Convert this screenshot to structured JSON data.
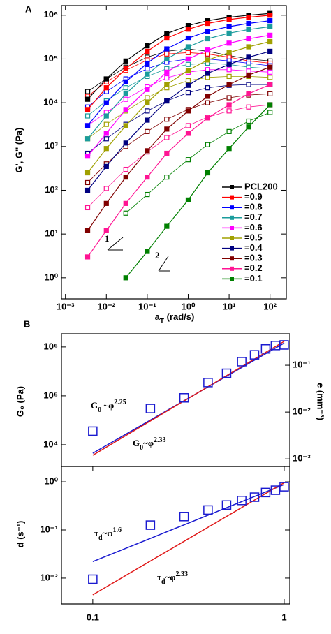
{
  "chart_data": [
    {
      "type": "line",
      "panel_label": "A",
      "x_label": {
        "main": "a",
        "sub": "T",
        "rest": "   (rad/s)"
      },
      "y_label": "G', G'' (Pa)",
      "log_x": true,
      "log_y": true,
      "xlim": [
        0.0008,
        250
      ],
      "ylim": [
        0.33,
        1660000
      ],
      "xticks": [
        {
          "value": 0.001,
          "label": "10⁻³"
        },
        {
          "value": 0.01,
          "label": "10⁻²"
        },
        {
          "value": 0.1,
          "label": "10⁻¹"
        },
        {
          "value": 1,
          "label": "10⁰"
        },
        {
          "value": 10,
          "label": "10¹"
        },
        {
          "value": 100,
          "label": "10²"
        }
      ],
      "yticks": [
        {
          "value": 1,
          "label": "10⁰"
        },
        {
          "value": 10,
          "label": "10¹"
        },
        {
          "value": 100,
          "label": "10²"
        },
        {
          "value": 1000,
          "label": "10³"
        },
        {
          "value": 10000,
          "label": "10⁴"
        },
        {
          "value": 100000,
          "label": "10⁵"
        },
        {
          "value": 1000000,
          "label": "10⁶"
        }
      ],
      "x": [
        0.0035,
        0.01,
        0.03,
        0.1,
        0.3,
        1,
        3,
        10,
        30,
        100
      ],
      "legend": "lower right",
      "slopes": [
        "1",
        "2"
      ],
      "series": [
        {
          "name": "PCL200",
          "color": "#000000",
          "values": [
            12000,
            35000,
            90000,
            200000,
            380000,
            580000,
            750000,
            900000,
            1000000,
            1100000
          ],
          "loss_values": [
            18000,
            35000,
            65000,
            110000,
            150000,
            170000,
            150000,
            120000,
            100000,
            90000
          ]
        },
        {
          "name": "=0.9",
          "color": "#ff0000",
          "values": [
            7000,
            22000,
            60000,
            150000,
            300000,
            480000,
            650000,
            800000,
            900000,
            1000000
          ],
          "loss_values": [
            14000,
            30000,
            55000,
            95000,
            130000,
            140000,
            130000,
            110000,
            90000,
            80000
          ]
        },
        {
          "name": "=0.8",
          "color": "#0000ff",
          "values": [
            3000,
            10000,
            30000,
            80000,
            170000,
            300000,
            430000,
            550000,
            650000,
            750000
          ],
          "loss_values": [
            8000,
            18000,
            35000,
            60000,
            85000,
            100000,
            100000,
            90000,
            80000,
            70000
          ]
        },
        {
          "name": "=0.7",
          "color": "#1a9c9c",
          "values": [
            1500,
            5000,
            16000,
            45000,
            100000,
            190000,
            290000,
            390000,
            470000,
            550000
          ],
          "loss_values": [
            5000,
            11000,
            22000,
            40000,
            60000,
            75000,
            80000,
            75000,
            65000,
            60000
          ]
        },
        {
          "name": "=0.6",
          "color": "#ff00ff",
          "values": [
            600,
            2000,
            7000,
            20000,
            50000,
            100000,
            160000,
            230000,
            290000,
            350000
          ],
          "loss_values": [
            3000,
            6000,
            12000,
            23000,
            37000,
            50000,
            57000,
            57000,
            53000,
            50000
          ]
        },
        {
          "name": "=0.5",
          "color": "#a0a000",
          "values": [
            250,
            900,
            3000,
            10000,
            26000,
            55000,
            95000,
            140000,
            190000,
            250000
          ],
          "loss_values": [
            1500,
            3200,
            6500,
            13000,
            22000,
            32000,
            38000,
            40000,
            40000,
            38000
          ]
        },
        {
          "name": "=0.4",
          "color": "#000080",
          "values": [
            100,
            350,
            1200,
            4000,
            11000,
            25000,
            47000,
            75000,
            110000,
            150000
          ],
          "loss_values": [
            700,
            1500,
            3200,
            6500,
            11000,
            17000,
            22000,
            25000,
            26000,
            26000
          ]
        },
        {
          "name": "=0.3",
          "color": "#800000",
          "values": [
            12,
            50,
            200,
            800,
            2500,
            6500,
            14000,
            26000,
            43000,
            65000
          ],
          "loss_values": [
            150,
            400,
            1000,
            2200,
            4200,
            7000,
            10000,
            13000,
            15000,
            16000
          ]
        },
        {
          "name": "=0.2",
          "color": "#ff1493",
          "values": [
            3,
            12,
            50,
            200,
            700,
            2000,
            4500,
            9000,
            16000,
            26000
          ],
          "loss_values": [
            40,
            110,
            300,
            750,
            1600,
            3000,
            4700,
            6500,
            8000,
            9000
          ]
        },
        {
          "name": "=0.1",
          "color": "#008000",
          "values": [
            null,
            null,
            1,
            4,
            15,
            60,
            250,
            900,
            2800,
            9000
          ],
          "loss_values": [
            null,
            null,
            30,
            80,
            200,
            500,
            1100,
            2200,
            3800,
            6000
          ]
        }
      ]
    },
    {
      "type": "scatter",
      "panel_label": "B",
      "y_label": "G₀ (Pa)",
      "y2_label": "e (mm⁻³)",
      "log_x": true,
      "log_y": true,
      "xlim": [
        0.0686,
        1.07
      ],
      "ylim": [
        3600,
        1860000
      ],
      "y2lim": [
        0.00069,
        0.47
      ],
      "yticks": [
        {
          "value": 10000,
          "label": "10⁴"
        },
        {
          "value": 100000,
          "label": "10⁵"
        },
        {
          "value": 1000000,
          "label": "10⁶"
        }
      ],
      "y2ticks": [
        {
          "value": 0.001,
          "label": "10⁻³"
        },
        {
          "value": 0.01,
          "label": "10⁻²"
        },
        {
          "value": 0.1,
          "label": "10⁻¹"
        }
      ],
      "x": [
        0.1,
        0.2,
        0.3,
        0.4,
        0.5,
        0.6,
        0.7,
        0.8,
        0.9,
        1
      ],
      "values": [
        19000,
        55000,
        91000,
        187000,
        290000,
        500000,
        690000,
        910000,
        1070000,
        1100000
      ],
      "color": "#1a1ad0",
      "fits": [
        {
          "x": [
            0.1,
            1
          ],
          "values": [
            6700,
            1200000
          ],
          "color": "#1a1ad0",
          "label": {
            "base": "G",
            "sub": "0",
            "rel": " ~φ",
            "sup": "2.25"
          }
        },
        {
          "x": [
            0.1,
            1
          ],
          "values": [
            6100,
            1300000
          ],
          "color": "#e01818",
          "label": {
            "base": "G",
            "sub": "0",
            "rel": "~φ",
            "sup": "2.33"
          }
        }
      ]
    },
    {
      "type": "scatter",
      "y_label": "d (s⁻¹)",
      "log_x": true,
      "log_y": true,
      "xlim": [
        0.0686,
        1.07
      ],
      "ylim": [
        0.0029,
        2.09
      ],
      "xticks": [
        0.1,
        1
      ],
      "yticks": [
        {
          "value": 0.01,
          "label": "10⁻²"
        },
        {
          "value": 0.1,
          "label": "10⁻¹"
        },
        {
          "value": 1,
          "label": "10⁰"
        }
      ],
      "x": [
        0.1,
        0.2,
        0.3,
        0.4,
        0.5,
        0.6,
        0.7,
        0.8,
        0.9,
        1
      ],
      "values": [
        0.0095,
        0.126,
        0.19,
        0.26,
        0.33,
        0.41,
        0.48,
        0.6,
        0.67,
        0.79
      ],
      "color": "#1a1ad0",
      "fits": [
        {
          "x": [
            0.1,
            1
          ],
          "values": [
            0.022,
            0.88
          ],
          "color": "#1a1ad0",
          "label": {
            "base": "τ",
            "sub": "d",
            "rel": "~φ",
            "sup": "1.6"
          }
        },
        {
          "x": [
            0.1,
            1
          ],
          "values": [
            0.0045,
            0.96
          ],
          "color": "#e01818",
          "label": {
            "base": "τ",
            "sub": "d",
            "rel": "~φ",
            "sup": "2.33"
          }
        }
      ]
    }
  ]
}
